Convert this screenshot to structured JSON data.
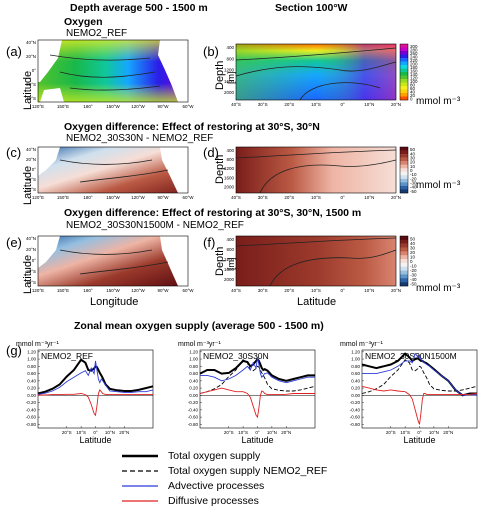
{
  "headers": {
    "col_left": "Depth average 500 - 1500 m",
    "col_right": "Section 100°W",
    "row1_title": "Oxygen",
    "row1_subtitle": "NEMO2_REF",
    "row2_title": "Oxygen difference: Effect of restoring at 30°S, 30°N",
    "row2_subtitle": "NEMO2_30S30N - NEMO2_REF",
    "row3_title": "Oxygen difference: Effect of restoring at 30°S, 30°N, 1500 m",
    "row3_subtitle": "NEMO2_30S30N1500M - NEMO2_REF",
    "bottom_title": "Zonal mean oxygen supply (average 500 - 1500 m)"
  },
  "panel_labels": [
    "(a)",
    "(b)",
    "(c)",
    "(d)",
    "(e)",
    "(f)",
    "(g)"
  ],
  "axis_text": {
    "latitude": "Latitude",
    "longitude": "Longitude",
    "depth": "Depth",
    "depth_unit": "[m]",
    "conc_unit": "mmol m⁻³",
    "supply_unit": "mmol m⁻³yr⁻¹"
  },
  "map_ticks": {
    "lat": [
      "40°N",
      "20°N",
      "0°",
      "20°S",
      "40°S"
    ],
    "lon": [
      "120°E",
      "150°E",
      "180°",
      "150°W",
      "120°W",
      "90°W",
      "60°W"
    ]
  },
  "section_ticks": {
    "depth": [
      "400",
      "800",
      "1200",
      "1600",
      "2000"
    ],
    "lat": [
      "40°S",
      "30°S",
      "20°S",
      "10°S",
      "0°",
      "10°N",
      "20°N"
    ]
  },
  "colorbar_oxygen": {
    "labels": [
      "300",
      "280",
      "260",
      "240",
      "220",
      "200",
      "180",
      "160",
      "140",
      "120",
      "100",
      "80",
      "60",
      "40",
      "20",
      "0"
    ],
    "colors": [
      "#e0109a",
      "#c600c6",
      "#7a00d6",
      "#2a1ee8",
      "#1a66ff",
      "#15a7ff",
      "#10d8e0",
      "#10c79a",
      "#18b84a",
      "#52c22e",
      "#96d826",
      "#c8e81e",
      "#f0f020",
      "#ffd010",
      "#ffa000",
      "#ff5000"
    ]
  },
  "colorbar_diff": {
    "labels": [
      "50",
      "40",
      "30",
      "20",
      "10",
      "0",
      "-10",
      "-20",
      "-30",
      "-40",
      "-50"
    ],
    "colors": [
      "#5a0a10",
      "#7a1d1a",
      "#9b3a2c",
      "#bb5a44",
      "#d88470",
      "#eeb4a4",
      "#f6ded6",
      "#f3f3f3",
      "#cfe0ee",
      "#96bfe0",
      "#5b94c8",
      "#2c63a6",
      "#143a70"
    ]
  },
  "chart_data": [
    {
      "type": "line",
      "title": "NEMO2_REF",
      "xlabel": "Latitude",
      "ylabel": "mmol m⁻³yr⁻¹",
      "x_ticks": [
        "20°S",
        "10°S",
        "0°",
        "10°N",
        "20°N"
      ],
      "y_ticks": [
        "1.20",
        "1.00",
        "0.80",
        "0.60",
        "0.40",
        "0.20",
        "0.00",
        "-0.20",
        "-0.40",
        "-0.60",
        "-0.80"
      ],
      "xlim": [
        -40,
        40
      ],
      "ylim": [
        -0.9,
        1.25
      ],
      "x": [
        -40,
        -35,
        -30,
        -25,
        -20,
        -15,
        -10,
        -7,
        -5,
        -3,
        -1,
        0,
        1,
        2,
        3,
        4,
        5,
        7,
        10,
        15,
        20,
        25,
        30,
        35,
        40
      ],
      "series": [
        {
          "name": "Total oxygen supply",
          "color": "#000000",
          "dash": "",
          "width": 2,
          "values": [
            0.05,
            0.1,
            0.18,
            0.3,
            0.52,
            0.7,
            0.98,
            0.9,
            0.7,
            0.68,
            0.74,
            0.8,
            0.78,
            0.7,
            0.62,
            0.55,
            0.48,
            0.3,
            0.18,
            0.14,
            0.12,
            0.12,
            0.15,
            0.2,
            0.25
          ]
        },
        {
          "name": "Advective processes",
          "color": "#2b3bd8",
          "dash": "",
          "width": 0.9,
          "values": [
            0.03,
            0.06,
            0.12,
            0.22,
            0.38,
            0.5,
            0.62,
            0.68,
            0.55,
            0.75,
            0.6,
            0.95,
            0.7,
            0.45,
            0.35,
            0.45,
            0.4,
            0.28,
            0.12,
            0.1,
            0.08,
            0.08,
            0.1,
            0.1,
            0.15
          ]
        },
        {
          "name": "Diffusive processes",
          "color": "#e02020",
          "dash": "",
          "width": 0.9,
          "values": [
            0.01,
            0.01,
            0.02,
            0.02,
            0.03,
            0.03,
            0.05,
            0.02,
            -0.05,
            -0.25,
            -0.5,
            -0.55,
            -0.3,
            0.05,
            0.15,
            0.1,
            0.05,
            0.02,
            0.02,
            0.02,
            0.02,
            0.02,
            0.02,
            0.02,
            0.02
          ]
        }
      ]
    },
    {
      "type": "line",
      "title": "NEMO2_30S30N",
      "xlabel": "Latitude",
      "ylabel": "mmol m⁻³yr⁻¹",
      "x_ticks": [
        "20°S",
        "10°S",
        "0°",
        "10°N",
        "20°N"
      ],
      "y_ticks": [
        "1.20",
        "1.00",
        "0.80",
        "0.60",
        "0.40",
        "0.20",
        "0.00",
        "-0.20",
        "-0.40",
        "-0.60",
        "-0.80"
      ],
      "xlim": [
        -40,
        40
      ],
      "ylim": [
        -0.9,
        1.25
      ],
      "x": [
        -40,
        -35,
        -30,
        -25,
        -20,
        -15,
        -10,
        -7,
        -5,
        -3,
        -1,
        0,
        1,
        2,
        3,
        4,
        5,
        7,
        10,
        15,
        20,
        25,
        30,
        35,
        40
      ],
      "series": [
        {
          "name": "Total oxygen supply",
          "color": "#000000",
          "dash": "",
          "width": 2,
          "values": [
            0.6,
            0.7,
            0.7,
            0.6,
            0.62,
            0.75,
            0.95,
            0.92,
            0.8,
            0.85,
            0.95,
            1.0,
            0.95,
            0.85,
            0.75,
            0.7,
            0.72,
            0.68,
            0.55,
            0.45,
            0.4,
            0.45,
            0.5,
            0.55,
            0.55
          ]
        },
        {
          "name": "Total oxygen supply NEMO2_REF",
          "color": "#000000",
          "dash": "4,2",
          "width": 0.9,
          "values": [
            0.05,
            0.1,
            0.18,
            0.3,
            0.52,
            0.7,
            0.98,
            0.9,
            0.7,
            0.68,
            0.74,
            0.8,
            0.78,
            0.7,
            0.62,
            0.55,
            0.48,
            0.3,
            0.18,
            0.14,
            0.12,
            0.12,
            0.15,
            0.2,
            0.25
          ]
        },
        {
          "name": "Advective processes",
          "color": "#2b3bd8",
          "dash": "",
          "width": 0.9,
          "values": [
            0.55,
            0.55,
            0.5,
            0.4,
            0.45,
            0.55,
            0.7,
            0.8,
            0.7,
            0.9,
            0.75,
            1.05,
            0.85,
            0.6,
            0.5,
            0.55,
            0.6,
            0.62,
            0.5,
            0.4,
            0.35,
            0.4,
            0.45,
            0.5,
            0.5
          ]
        },
        {
          "name": "Diffusive processes",
          "color": "#e02020",
          "dash": "",
          "width": 0.9,
          "values": [
            0.05,
            0.1,
            0.15,
            0.2,
            0.15,
            0.1,
            0.1,
            0.05,
            -0.05,
            -0.3,
            -0.55,
            -0.6,
            -0.35,
            0.0,
            0.12,
            0.1,
            0.05,
            0.02,
            0.02,
            0.02,
            0.03,
            0.05,
            0.05,
            0.05,
            0.05
          ]
        }
      ]
    },
    {
      "type": "line",
      "title": "NEMO2_30S30N1500M",
      "xlabel": "Latitude",
      "ylabel": "mmol m⁻³yr⁻¹",
      "x_ticks": [
        "20°S",
        "10°S",
        "0°",
        "10°N",
        "20°N"
      ],
      "y_ticks": [
        "1.20",
        "1.00",
        "0.80",
        "0.60",
        "0.40",
        "0.20",
        "0.00",
        "-0.20",
        "-0.40",
        "-0.60",
        "-0.80"
      ],
      "xlim": [
        -40,
        40
      ],
      "ylim": [
        -0.9,
        1.25
      ],
      "x": [
        -40,
        -35,
        -30,
        -25,
        -20,
        -15,
        -10,
        -7,
        -5,
        -3,
        -1,
        0,
        1,
        2,
        3,
        4,
        5,
        7,
        10,
        15,
        20,
        25,
        30,
        35,
        40
      ],
      "series": [
        {
          "name": "Total oxygen supply",
          "color": "#000000",
          "dash": "",
          "width": 2,
          "values": [
            0.85,
            0.8,
            0.75,
            0.8,
            0.85,
            0.95,
            1.15,
            1.05,
            0.95,
            1.0,
            1.02,
            0.98,
            0.95,
            0.95,
            0.92,
            0.9,
            0.88,
            0.82,
            0.72,
            0.55,
            0.4,
            0.15,
            0.0,
            0.05,
            0.05
          ]
        },
        {
          "name": "Total oxygen supply NEMO2_REF",
          "color": "#000000",
          "dash": "4,2",
          "width": 0.9,
          "values": [
            0.05,
            0.1,
            0.18,
            0.3,
            0.52,
            0.7,
            0.98,
            0.9,
            0.7,
            0.68,
            0.74,
            0.8,
            0.78,
            0.7,
            0.62,
            0.55,
            0.48,
            0.3,
            0.18,
            0.14,
            0.12,
            0.12,
            0.15,
            0.2,
            0.25
          ]
        },
        {
          "name": "Advective processes",
          "color": "#2b3bd8",
          "dash": "",
          "width": 0.9,
          "values": [
            0.6,
            0.6,
            0.6,
            0.65,
            0.7,
            0.8,
            0.95,
            0.95,
            0.9,
            1.15,
            1.05,
            1.1,
            1.0,
            0.95,
            0.9,
            0.88,
            0.85,
            0.8,
            0.7,
            0.55,
            0.4,
            0.15,
            0.0,
            0.02,
            0.0
          ]
        },
        {
          "name": "Diffusive processes",
          "color": "#e02020",
          "dash": "",
          "width": 0.9,
          "values": [
            0.25,
            0.2,
            0.15,
            0.12,
            0.15,
            0.12,
            0.1,
            0.02,
            -0.1,
            -0.4,
            -0.7,
            -0.8,
            -0.5,
            -0.1,
            0.05,
            0.05,
            0.02,
            0.02,
            0.02,
            0.02,
            0.02,
            0.02,
            0.02,
            0.03,
            0.05
          ]
        }
      ]
    }
  ],
  "legend": [
    {
      "label": "Total oxygen supply",
      "color": "#000000",
      "dash": "",
      "width": 2.6
    },
    {
      "label": "Total oxygen supply NEMO2_REF",
      "color": "#000000",
      "dash": "5,3",
      "width": 1.2
    },
    {
      "label": "Advective processes",
      "color": "#2b3bd8",
      "dash": "",
      "width": 1.2
    },
    {
      "label": "Diffusive processes",
      "color": "#e02020",
      "dash": "",
      "width": 1.2
    }
  ]
}
